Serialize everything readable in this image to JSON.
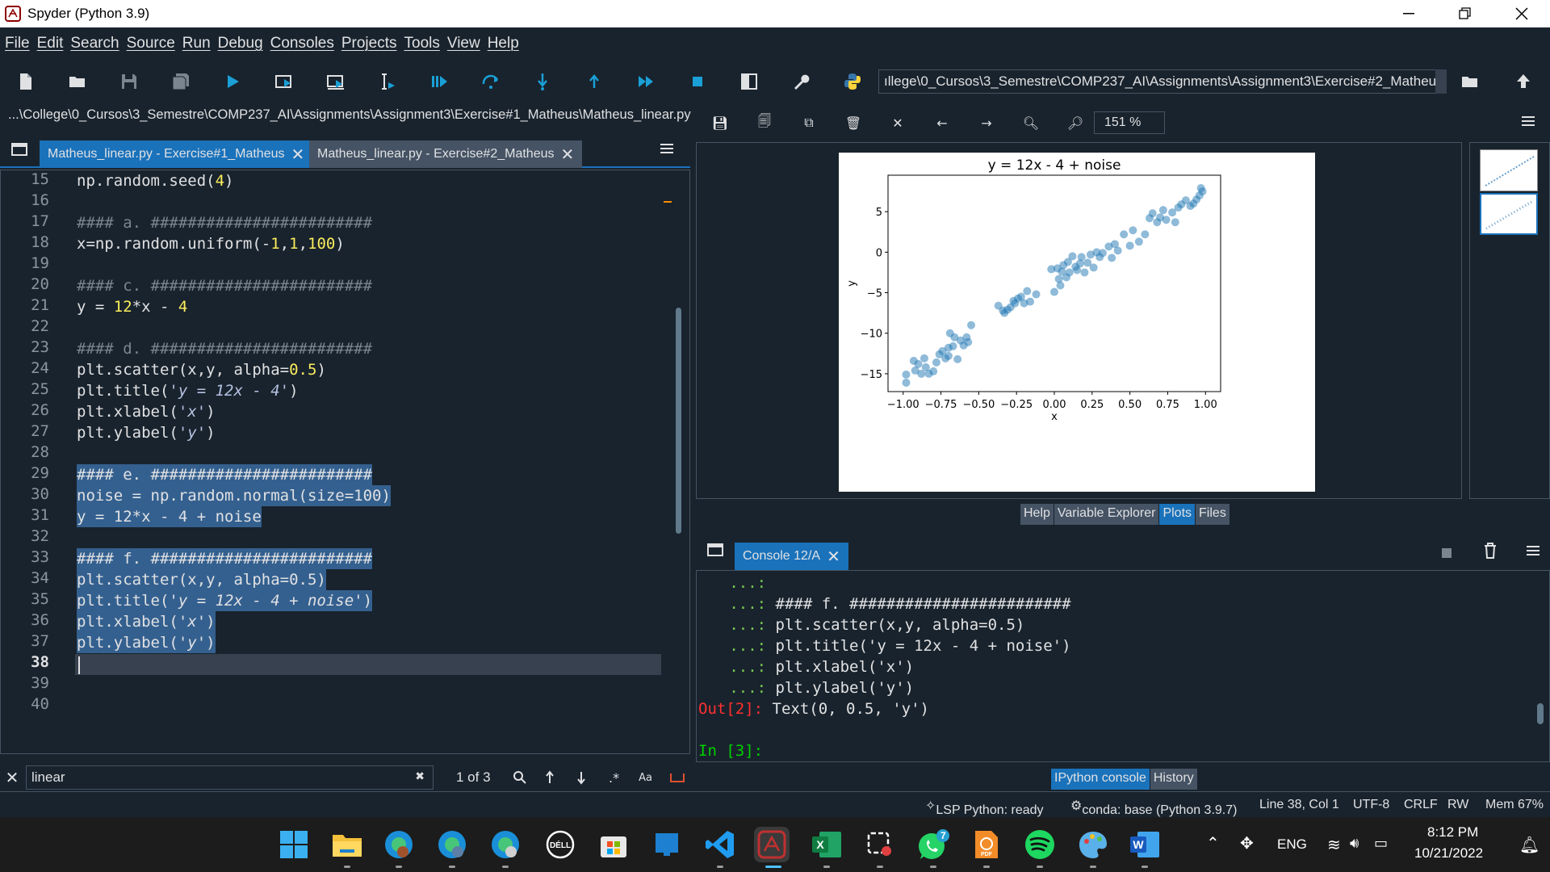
{
  "window": {
    "title": "Spyder (Python 3.9)"
  },
  "menu": [
    "File",
    "Edit",
    "Search",
    "Source",
    "Run",
    "Debug",
    "Consoles",
    "Projects",
    "Tools",
    "View",
    "Help"
  ],
  "toolbar": {
    "working_dir": "ıllege\\0_Cursos\\3_Semestre\\COMP237_AI\\Assignments\\Assignment3\\Exercise#2_Matheus"
  },
  "editor": {
    "path": "...\\College\\0_Cursos\\3_Semestre\\COMP237_AI\\Assignments\\Assignment3\\Exercise#1_Matheus\\Matheus_linear.py",
    "tabs": [
      {
        "label": "Matheus_linear.py - Exercise#1_Matheus",
        "active": true
      },
      {
        "label": "Matheus_linear.py - Exercise#2_Matheus",
        "active": false
      }
    ],
    "line_numbers": [
      "15",
      "16",
      "17",
      "18",
      "19",
      "20",
      "21",
      "22",
      "23",
      "24",
      "25",
      "26",
      "27",
      "28",
      "29",
      "30",
      "31",
      "32",
      "33",
      "34",
      "35",
      "36",
      "37",
      "38",
      "39",
      "40"
    ],
    "current_line": "38"
  },
  "find": {
    "query": "linear",
    "count": "1 of 3",
    "case_label": "Aa"
  },
  "plots": {
    "zoom": "151 %",
    "tabs": [
      "Help",
      "Variable Explorer",
      "Plots",
      "Files"
    ],
    "active_tab": "Plots"
  },
  "chart_data": {
    "type": "scatter",
    "title": "y = 12x - 4 + noise",
    "xlabel": "x",
    "ylabel": "y",
    "xlim": [
      -1.1,
      1.1
    ],
    "ylim": [
      -17.2,
      9.5
    ],
    "xticks": [
      "−1.00",
      "−0.75",
      "−0.50",
      "−0.25",
      "0.00",
      "0.25",
      "0.50",
      "0.75",
      "1.00"
    ],
    "xtick_values": [
      -1.0,
      -0.75,
      -0.5,
      -0.25,
      0.0,
      0.25,
      0.5,
      0.75,
      1.0
    ],
    "yticks": [
      "5",
      "0",
      "−5",
      "−10",
      "−15"
    ],
    "ytick_values": [
      5,
      0,
      -5,
      -10,
      -15
    ],
    "color": "#1f77b4",
    "alpha": 0.5,
    "x": [
      -0.98,
      -0.98,
      -0.93,
      -0.92,
      -0.9,
      -0.88,
      -0.86,
      -0.85,
      -0.83,
      -0.8,
      -0.78,
      -0.76,
      -0.74,
      -0.72,
      -0.7,
      -0.7,
      -0.69,
      -0.67,
      -0.66,
      -0.64,
      -0.62,
      -0.6,
      -0.58,
      -0.57,
      -0.55,
      -0.37,
      -0.34,
      -0.33,
      -0.31,
      -0.29,
      -0.27,
      -0.26,
      -0.24,
      -0.22,
      -0.2,
      -0.18,
      -0.16,
      -0.12,
      -0.02,
      0.0,
      0.02,
      0.03,
      0.04,
      0.05,
      0.06,
      0.08,
      0.09,
      0.1,
      0.12,
      0.14,
      0.15,
      0.17,
      0.18,
      0.2,
      0.22,
      0.24,
      0.26,
      0.28,
      0.3,
      0.32,
      0.36,
      0.38,
      0.4,
      0.42,
      0.46,
      0.5,
      0.52,
      0.56,
      0.6,
      0.63,
      0.65,
      0.68,
      0.7,
      0.72,
      0.74,
      0.78,
      0.8,
      0.82,
      0.84,
      0.87,
      0.9,
      0.92,
      0.94,
      0.96,
      0.97,
      0.98
    ],
    "y": [
      -16.1,
      -15.1,
      -13.4,
      -14.6,
      -13.8,
      -15.0,
      -13.1,
      -14.2,
      -15.0,
      -14.7,
      -13.6,
      -12.6,
      -12.2,
      -13.1,
      -11.8,
      -12.8,
      -10.0,
      -11.6,
      -10.5,
      -13.2,
      -10.9,
      -11.5,
      -10.5,
      -11.1,
      -9.0,
      -6.6,
      -7.2,
      -7.5,
      -7.1,
      -6.8,
      -6.0,
      -6.3,
      -5.7,
      -5.5,
      -6.3,
      -4.8,
      -6.1,
      -5.2,
      -2.1,
      -4.9,
      -2.0,
      -3.3,
      -4.1,
      -2.4,
      -1.6,
      -3.1,
      -1.2,
      -2.5,
      -0.5,
      -1.8,
      -2.2,
      -1.4,
      -0.6,
      -2.5,
      -1.3,
      -0.3,
      -1.9,
      0.0,
      -0.6,
      -0.1,
      0.7,
      -0.7,
      1.0,
      0.2,
      2.2,
      0.8,
      2.7,
      1.3,
      2.2,
      4.2,
      4.8,
      3.7,
      4.3,
      5.2,
      4.0,
      4.9,
      3.7,
      5.5,
      5.9,
      6.4,
      5.7,
      6.0,
      6.5,
      7.0,
      7.9,
      7.5
    ]
  },
  "console": {
    "tab": "Console 12/A",
    "lines": [
      {
        "prompt": "   ...:",
        "text": ""
      },
      {
        "prompt": "   ...:",
        "text": " #### f. ########################"
      },
      {
        "prompt": "   ...:",
        "text": " plt.scatter(x,y, alpha=0.5)"
      },
      {
        "prompt": "   ...:",
        "text": " plt.title('y = 12x - 4 + noise')"
      },
      {
        "prompt": "   ...:",
        "text": " plt.xlabel('x')"
      },
      {
        "prompt": "   ...:",
        "text": " plt.ylabel('y')"
      }
    ],
    "out_prompt": "Out[2]:",
    "out_text": " Text(0, 0.5, 'y')",
    "in_prompt": "In [3]:",
    "tabs": [
      "IPython console",
      "History"
    ],
    "active_tab": "IPython console"
  },
  "status": {
    "lsp": "LSP Python: ready",
    "conda": "conda: base (Python 3.9.7)",
    "cursor": "Line 38, Col 1",
    "encoding": "UTF-8",
    "eol": "CRLF",
    "perm": "RW",
    "mem": "Mem 67%"
  },
  "taskbar": {
    "lang": "ENG",
    "time": "8:12 PM",
    "date": "10/21/2022",
    "whatsapp_badge": "7",
    "dell_label": "DÉLL",
    "pdf_label": "PDF",
    "excel_label": "X",
    "word_label": "W"
  }
}
